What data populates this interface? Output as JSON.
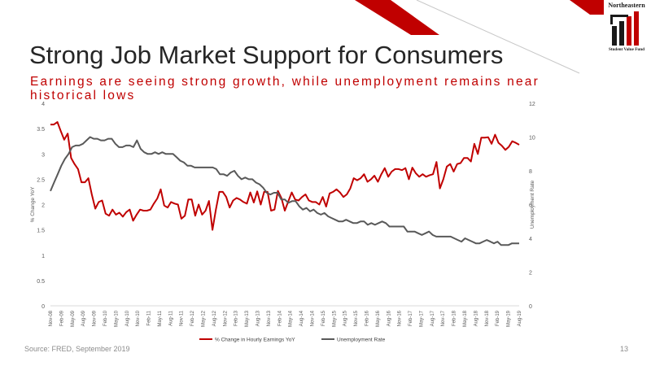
{
  "slide": {
    "title": "Strong Job Market Support for Consumers",
    "subtitle": "Earnings are seeing strong growth, while unemployment remains near historical lows",
    "source": "Source:  FRED, September 2019",
    "page_number": "13"
  },
  "logo": {
    "top_text": "Northeastern",
    "bottom_text": "Student Value Fund"
  },
  "colors": {
    "accent": "#c00000",
    "earnings_line": "#c00000",
    "unemployment_line": "#595959",
    "text_dark": "#262626"
  },
  "chart_data": {
    "type": "line",
    "title": "",
    "xlabel": "",
    "ylabel": "% Change YoY",
    "y2label": "Unemployment  Rate",
    "ylim": [
      0,
      4
    ],
    "y2lim": [
      0,
      12
    ],
    "yticks": [
      "0",
      "0.5",
      "1",
      "1.5",
      "2",
      "2.5",
      "3",
      "3.5",
      "4"
    ],
    "y2ticks": [
      "0",
      "2",
      "4",
      "6",
      "8",
      "10",
      "12"
    ],
    "grid": false,
    "legend_position": "bottom",
    "x_tick_labels": [
      "Nov-08",
      "Feb-09",
      "May-09",
      "Aug-09",
      "Nov-09",
      "Feb-10",
      "May-10",
      "Aug-10",
      "Nov-10",
      "Feb-11",
      "May-11",
      "Aug-11",
      "Nov-11",
      "Feb-12",
      "May-12",
      "Aug-12",
      "Nov-12",
      "Feb-13",
      "May-13",
      "Aug-13",
      "Nov-13",
      "Feb-14",
      "May-14",
      "Aug-14",
      "Nov-14",
      "Feb-15",
      "May-15",
      "Aug-15",
      "Nov-15",
      "Feb-16",
      "May-16",
      "Aug-16",
      "Nov-16",
      "Feb-17",
      "May-17",
      "Aug-17",
      "Nov-17",
      "Feb-18",
      "May-18",
      "Aug-18",
      "Nov-18",
      "Feb-19",
      "May-19",
      "Aug-19"
    ],
    "series": [
      {
        "name": "% Change in Hourly Earnings YoY",
        "axis": "left",
        "color": "#c00000",
        "values": [
          3.58,
          3.58,
          3.63,
          3.45,
          3.28,
          3.4,
          2.92,
          2.8,
          2.7,
          2.44,
          2.44,
          2.52,
          2.2,
          1.92,
          2.05,
          2.08,
          1.82,
          1.78,
          1.9,
          1.8,
          1.84,
          1.76,
          1.85,
          1.9,
          1.68,
          1.8,
          1.9,
          1.88,
          1.88,
          1.9,
          2.02,
          2.12,
          2.3,
          1.98,
          1.94,
          2.05,
          2.02,
          2.0,
          1.72,
          1.78,
          2.1,
          2.1,
          1.78,
          2.0,
          1.8,
          1.88,
          2.07,
          1.5,
          1.9,
          2.25,
          2.25,
          2.15,
          1.94,
          2.08,
          2.13,
          2.1,
          2.05,
          2.02,
          2.24,
          2.04,
          2.26,
          2.0,
          2.25,
          2.25,
          1.88,
          1.9,
          2.27,
          2.13,
          1.88,
          2.06,
          2.24,
          2.1,
          2.08,
          2.15,
          2.2,
          2.08,
          2.05,
          2.05,
          2.0,
          2.15,
          1.96,
          2.22,
          2.25,
          2.3,
          2.24,
          2.15,
          2.2,
          2.32,
          2.52,
          2.48,
          2.52,
          2.6,
          2.45,
          2.5,
          2.57,
          2.45,
          2.6,
          2.72,
          2.55,
          2.65,
          2.7,
          2.7,
          2.68,
          2.72,
          2.5,
          2.73,
          2.62,
          2.55,
          2.6,
          2.55,
          2.58,
          2.6,
          2.84,
          2.32,
          2.5,
          2.75,
          2.8,
          2.65,
          2.8,
          2.82,
          2.92,
          2.92,
          2.85,
          3.2,
          3.0,
          3.32,
          3.32,
          3.33,
          3.2,
          3.38,
          3.22,
          3.16,
          3.08,
          3.14,
          3.25,
          3.22,
          3.18
        ]
      },
      {
        "name": "Unemployment Rate",
        "axis": "right",
        "color": "#595959",
        "values": [
          6.8,
          7.3,
          7.8,
          8.3,
          8.7,
          9.0,
          9.4,
          9.5,
          9.5,
          9.6,
          9.8,
          10.0,
          9.9,
          9.9,
          9.8,
          9.8,
          9.9,
          9.9,
          9.6,
          9.4,
          9.4,
          9.5,
          9.5,
          9.4,
          9.8,
          9.3,
          9.1,
          9.0,
          9.0,
          9.1,
          9.0,
          9.1,
          9.0,
          9.0,
          9.0,
          8.8,
          8.6,
          8.5,
          8.3,
          8.3,
          8.2,
          8.2,
          8.2,
          8.2,
          8.2,
          8.2,
          8.1,
          7.8,
          7.8,
          7.7,
          7.9,
          8.0,
          7.7,
          7.5,
          7.6,
          7.5,
          7.5,
          7.3,
          7.2,
          7.0,
          6.7,
          6.6,
          6.7,
          6.7,
          6.3,
          6.3,
          6.1,
          6.2,
          6.2,
          5.9,
          5.7,
          5.8,
          5.6,
          5.7,
          5.5,
          5.4,
          5.5,
          5.3,
          5.2,
          5.1,
          5.0,
          5.0,
          5.1,
          5.0,
          4.9,
          4.9,
          5.0,
          5.0,
          4.8,
          4.9,
          4.8,
          4.9,
          5.0,
          4.9,
          4.7,
          4.7,
          4.7,
          4.7,
          4.7,
          4.4,
          4.4,
          4.4,
          4.3,
          4.2,
          4.3,
          4.4,
          4.2,
          4.1,
          4.1,
          4.1,
          4.1,
          4.1,
          4.0,
          3.9,
          3.8,
          4.0,
          3.9,
          3.8,
          3.7,
          3.7,
          3.8,
          3.9,
          3.8,
          3.7,
          3.8,
          3.6,
          3.6,
          3.6,
          3.7,
          3.7,
          3.7
        ]
      }
    ]
  }
}
